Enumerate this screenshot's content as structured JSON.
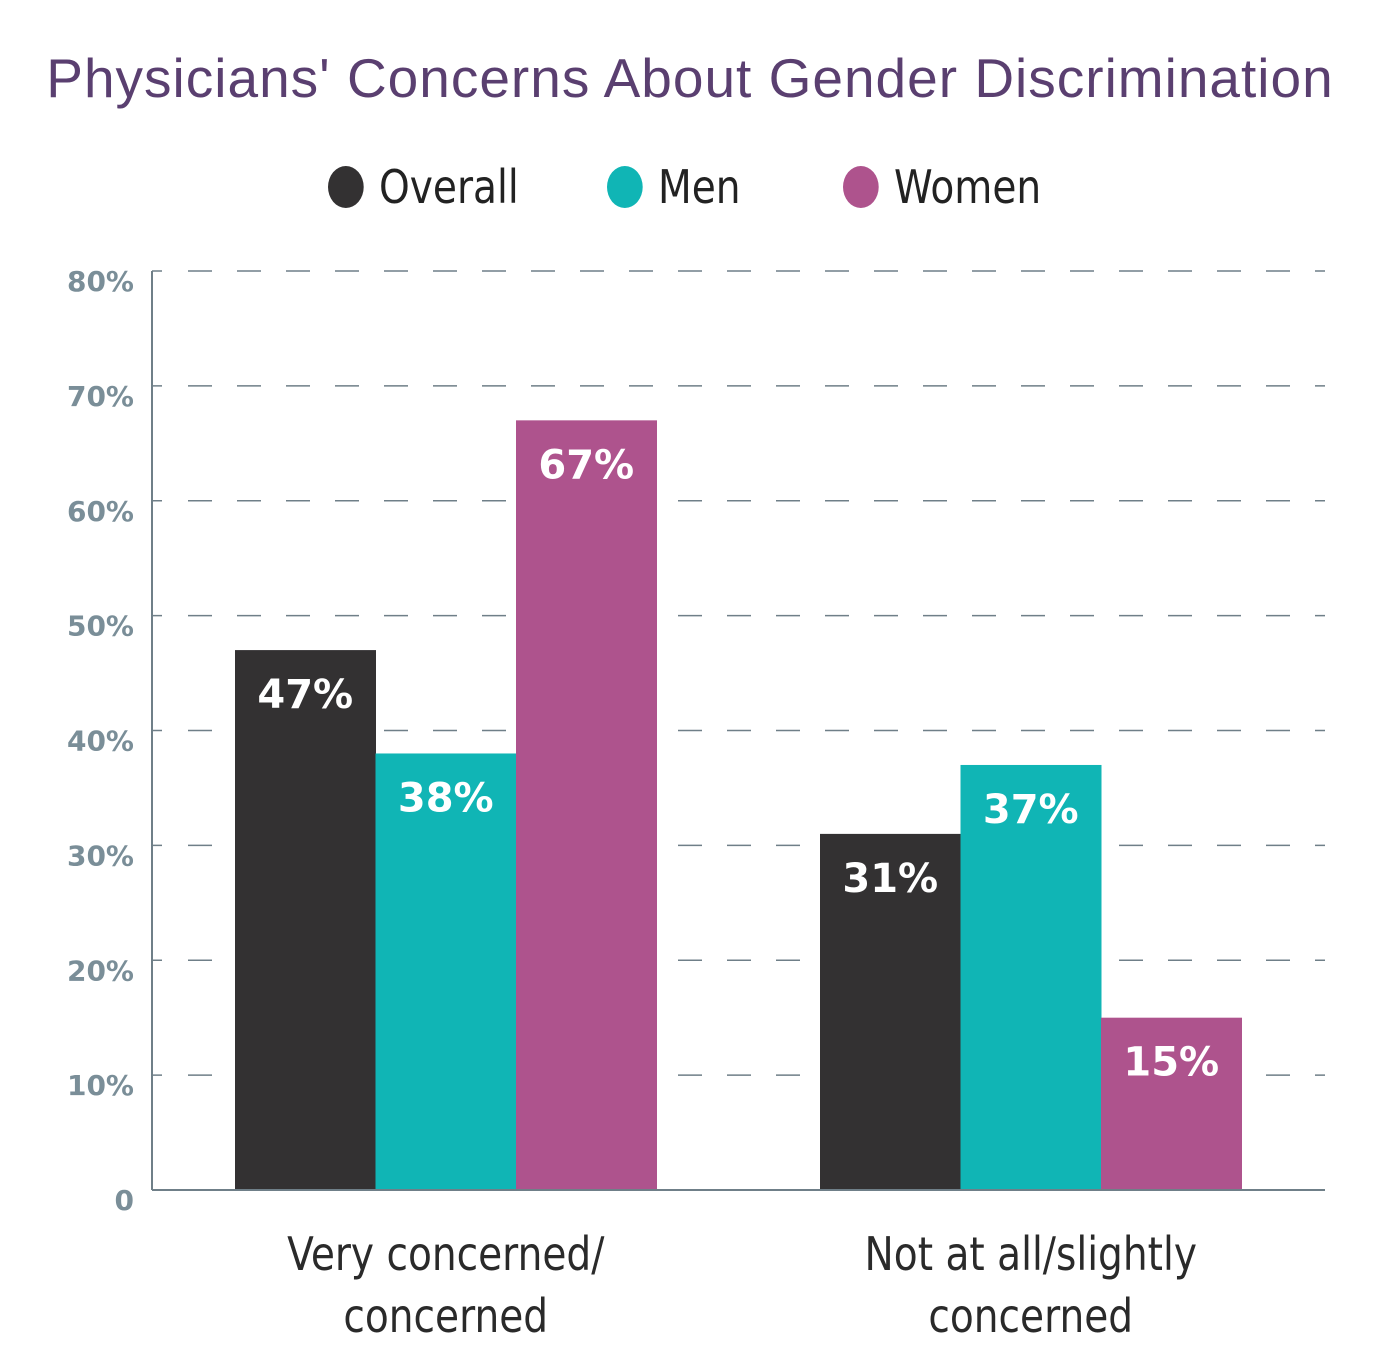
{
  "chart_data": {
    "type": "bar",
    "title": "Physicians' Concerns About Gender Discrimination",
    "categories": [
      [
        "Very concerned/",
        "concerned"
      ],
      [
        "Not at all/slightly",
        "concerned"
      ]
    ],
    "series": [
      {
        "name": "Overall",
        "color": "#333132",
        "values": [
          47,
          31
        ],
        "labels": [
          "47%",
          "31%"
        ]
      },
      {
        "name": "Men",
        "color": "#10b5b5",
        "values": [
          38,
          37
        ],
        "labels": [
          "38%",
          "37%"
        ]
      },
      {
        "name": "Women",
        "color": "#ae538d",
        "values": [
          67,
          15
        ],
        "labels": [
          "67%",
          "15%"
        ]
      }
    ],
    "yticks": [
      "0",
      "10%",
      "20%",
      "30%",
      "40%",
      "50%",
      "60%",
      "70%",
      "80%"
    ],
    "ylim": [
      0,
      80
    ],
    "grid": "dashed horizontal",
    "legend": "top-center",
    "xlabel": "",
    "ylabel": ""
  }
}
